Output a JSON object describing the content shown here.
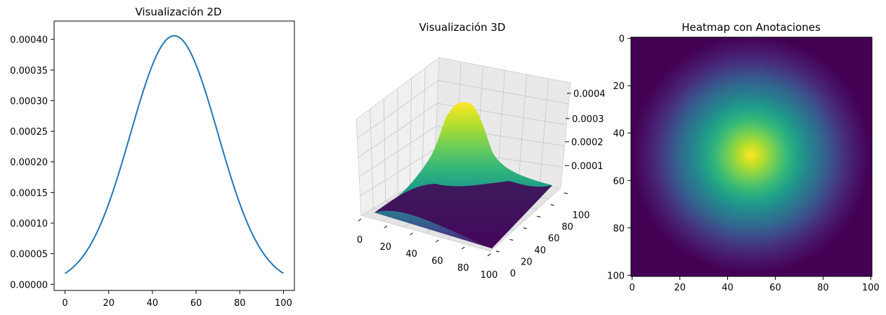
{
  "chart_data": [
    {
      "type": "line",
      "title": "Visualización 2D",
      "xlabel": "",
      "ylabel": "",
      "xlim": [
        -5,
        105
      ],
      "ylim": [
        -1e-05,
        0.00043
      ],
      "x_ticks": [
        0,
        20,
        40,
        60,
        80,
        100
      ],
      "x_tick_labels": [
        "0",
        "20",
        "40",
        "60",
        "80",
        "100"
      ],
      "y_ticks": [
        0,
        5e-05,
        0.0001,
        0.00015,
        0.0002,
        0.00025,
        0.0003,
        0.00035,
        0.0004
      ],
      "y_tick_labels": [
        "0.00000",
        "0.00005",
        "0.00010",
        "0.00015",
        "0.00020",
        "0.00025",
        "0.00030",
        "0.00035",
        "0.00040"
      ],
      "grid": false,
      "color": "#1f77b4",
      "series": [
        {
          "x": [
            0,
            5,
            10,
            15,
            20,
            25,
            30,
            35,
            40,
            45,
            50,
            55,
            60,
            65,
            70,
            75,
            80,
            85,
            90,
            95,
            100
          ],
          "y": [
            1.8e-05,
            3.4e-05,
            5.8e-05,
            9.3e-05,
            0.000139,
            0.000192,
            0.000251,
            0.000308,
            0.000357,
            0.000393,
            0.000406,
            0.000393,
            0.000357,
            0.000308,
            0.000251,
            0.000192,
            0.000139,
            9.3e-05,
            5.8e-05,
            3.4e-05,
            1.8e-05
          ]
        }
      ]
    },
    {
      "type": "surface",
      "title": "Visualización 3D",
      "colormap": "viridis",
      "grid": true,
      "x_tick_labels": [
        "0",
        "20",
        "40",
        "60",
        "80",
        "100"
      ],
      "y_tick_labels": [
        "0",
        "20",
        "40",
        "60",
        "80",
        "100"
      ],
      "z_tick_labels": [
        "0.0001",
        "0.0002",
        "0.0003",
        "0.0004"
      ],
      "x_range": [
        0,
        100
      ],
      "y_range": [
        0,
        100
      ],
      "z_range": [
        0,
        0.00041
      ],
      "peak": {
        "x": 50,
        "y": 50,
        "z": 0.000406
      }
    },
    {
      "type": "heatmap",
      "title": "Heatmap con Anotaciones",
      "colormap": "viridis",
      "x_tick_labels": [
        "0",
        "20",
        "40",
        "60",
        "80",
        "100"
      ],
      "y_tick_labels": [
        "0",
        "20",
        "40",
        "60",
        "80",
        "100"
      ],
      "grid_size": [
        101,
        101
      ],
      "center": [
        50,
        50
      ],
      "sigma": 20,
      "value_range": [
        1.8e-05,
        0.000406
      ]
    }
  ]
}
